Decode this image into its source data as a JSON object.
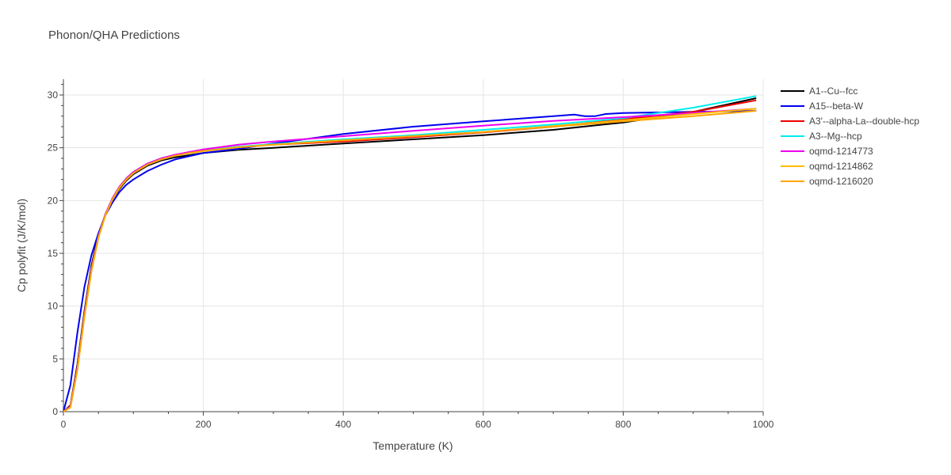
{
  "chart_title": "Phonon/QHA Predictions",
  "chart_data": {
    "type": "line",
    "title": "Phonon/QHA Predictions",
    "xlabel": "Temperature (K)",
    "ylabel": "Cp polyfit (J/K/mol)",
    "xlim": [
      0,
      1000
    ],
    "ylim": [
      0,
      31.5
    ],
    "xticks": [
      0,
      200,
      400,
      600,
      800,
      1000
    ],
    "yticks": [
      0,
      5,
      10,
      15,
      20,
      25,
      30
    ],
    "grid": true,
    "legend_position": "right",
    "series": [
      {
        "name": "A1--Cu--fcc",
        "color": "#000000",
        "x": [
          0,
          10,
          20,
          30,
          40,
          50,
          60,
          70,
          80,
          90,
          100,
          120,
          140,
          160,
          180,
          200,
          250,
          300,
          400,
          500,
          600,
          700,
          800,
          900,
          990
        ],
        "y": [
          0,
          0.6,
          4.5,
          9.5,
          13.8,
          16.8,
          18.7,
          20.1,
          21.1,
          21.9,
          22.5,
          23.3,
          23.8,
          24.1,
          24.3,
          24.5,
          24.8,
          25.0,
          25.4,
          25.8,
          26.2,
          26.7,
          27.4,
          28.4,
          29.7
        ]
      },
      {
        "name": "A15--beta-W",
        "color": "#0000ee",
        "x": [
          0,
          10,
          20,
          30,
          40,
          50,
          60,
          70,
          80,
          90,
          100,
          120,
          140,
          160,
          180,
          200,
          250,
          300,
          400,
          500,
          600,
          700,
          730,
          745,
          760,
          775,
          800,
          900,
          990
        ],
        "y": [
          0,
          2.5,
          7.5,
          11.8,
          14.8,
          16.9,
          18.6,
          19.8,
          20.8,
          21.5,
          22.0,
          22.8,
          23.4,
          23.9,
          24.2,
          24.5,
          24.9,
          25.4,
          26.3,
          27.0,
          27.5,
          28.0,
          28.15,
          28.0,
          28.0,
          28.2,
          28.3,
          28.4,
          28.5
        ]
      },
      {
        "name": "A3'--alpha-La--double-hcp",
        "color": "#ee0000",
        "x": [
          0,
          10,
          20,
          30,
          40,
          50,
          60,
          70,
          80,
          90,
          100,
          120,
          140,
          160,
          180,
          200,
          250,
          300,
          400,
          500,
          600,
          700,
          800,
          900,
          990
        ],
        "y": [
          0,
          0.5,
          4.2,
          9.2,
          13.5,
          16.6,
          18.7,
          20.2,
          21.3,
          22.1,
          22.7,
          23.5,
          24.0,
          24.3,
          24.55,
          24.75,
          25.1,
          25.3,
          25.6,
          26.0,
          26.45,
          27.0,
          27.7,
          28.4,
          29.5
        ]
      },
      {
        "name": "A3--Mg--hcp",
        "color": "#00eeee",
        "x": [
          0,
          10,
          20,
          30,
          40,
          50,
          60,
          70,
          80,
          90,
          100,
          120,
          140,
          160,
          180,
          200,
          250,
          300,
          400,
          500,
          600,
          700,
          800,
          900,
          990
        ],
        "y": [
          0,
          0.5,
          4.2,
          9.2,
          13.5,
          16.6,
          18.7,
          20.2,
          21.3,
          22.1,
          22.7,
          23.5,
          24.0,
          24.3,
          24.55,
          24.75,
          25.1,
          25.35,
          25.8,
          26.2,
          26.7,
          27.2,
          27.8,
          28.8,
          29.9
        ]
      },
      {
        "name": "oqmd-1214773",
        "color": "#ee00ee",
        "x": [
          0,
          10,
          20,
          30,
          40,
          50,
          60,
          70,
          80,
          90,
          100,
          120,
          140,
          160,
          180,
          200,
          250,
          300,
          400,
          500,
          600,
          700,
          800,
          900,
          990
        ],
        "y": [
          0,
          0.5,
          4.2,
          9.2,
          13.5,
          16.6,
          18.7,
          20.2,
          21.3,
          22.1,
          22.7,
          23.5,
          24.0,
          24.35,
          24.6,
          24.85,
          25.3,
          25.6,
          26.1,
          26.6,
          27.1,
          27.55,
          27.9,
          28.3,
          28.7
        ]
      },
      {
        "name": "oqmd-1214862",
        "color": "#ffbb00",
        "x": [
          0,
          10,
          20,
          30,
          40,
          50,
          60,
          70,
          80,
          90,
          100,
          120,
          140,
          160,
          180,
          200,
          250,
          300,
          400,
          500,
          600,
          700,
          800,
          900,
          990
        ],
        "y": [
          0,
          0.4,
          4.0,
          9.0,
          13.3,
          16.5,
          18.6,
          20.1,
          21.2,
          22.0,
          22.6,
          23.4,
          23.9,
          24.25,
          24.5,
          24.7,
          25.05,
          25.3,
          25.7,
          26.1,
          26.5,
          27.05,
          27.6,
          28.2,
          28.7
        ]
      },
      {
        "name": "oqmd-1216020",
        "color": "#ffa500",
        "x": [
          0,
          10,
          20,
          30,
          40,
          50,
          60,
          70,
          80,
          90,
          100,
          120,
          140,
          160,
          180,
          200,
          250,
          300,
          400,
          500,
          600,
          700,
          800,
          900,
          990
        ],
        "y": [
          0,
          0.4,
          4.0,
          9.0,
          13.3,
          16.5,
          18.6,
          20.1,
          21.2,
          22.0,
          22.6,
          23.4,
          23.9,
          24.25,
          24.5,
          24.7,
          25.05,
          25.3,
          25.7,
          26.1,
          26.5,
          27.0,
          27.5,
          28.0,
          28.5
        ]
      }
    ]
  }
}
